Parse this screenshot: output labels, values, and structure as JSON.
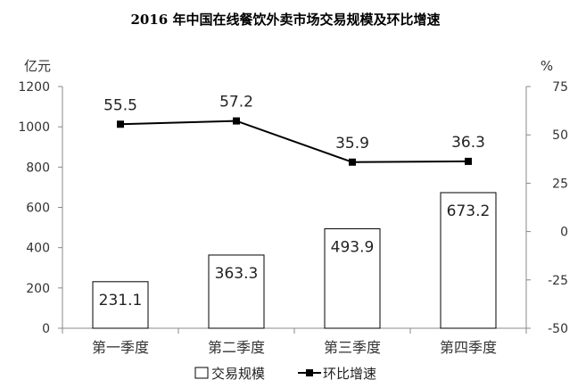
{
  "chart_data": {
    "type": "bar",
    "title": "2016 年中国在线餐饮外卖市场交易规模及环比增速",
    "ylabel_left": "亿元",
    "ylabel_right": "%",
    "categories": [
      "第一季度",
      "第二季度",
      "第三季度",
      "第四季度"
    ],
    "ylim_left": [
      0,
      1200
    ],
    "yticks_left": [
      "0",
      "200",
      "400",
      "600",
      "800",
      "1000",
      "1200"
    ],
    "ylim_right": [
      -50,
      75
    ],
    "yticks_right": [
      "-50",
      "-25",
      "0",
      "25",
      "50",
      "75"
    ],
    "series": [
      {
        "name": "交易规模",
        "kind": "bar",
        "axis": "left",
        "values": [
          231.1,
          363.3,
          493.9,
          673.2
        ],
        "labels": [
          "231.1",
          "363.3",
          "493.9",
          "673.2"
        ]
      },
      {
        "name": "环比增速",
        "kind": "line",
        "axis": "right",
        "values": [
          55.5,
          57.2,
          35.9,
          36.3
        ],
        "labels": [
          "55.5",
          "57.2",
          "35.9",
          "36.3"
        ]
      }
    ],
    "grid": false,
    "legend": "bottom-center",
    "colors": {
      "bar_fill": "#ffffff",
      "bar_stroke": "#000000",
      "line": "#000000",
      "axis": "#888888"
    }
  }
}
